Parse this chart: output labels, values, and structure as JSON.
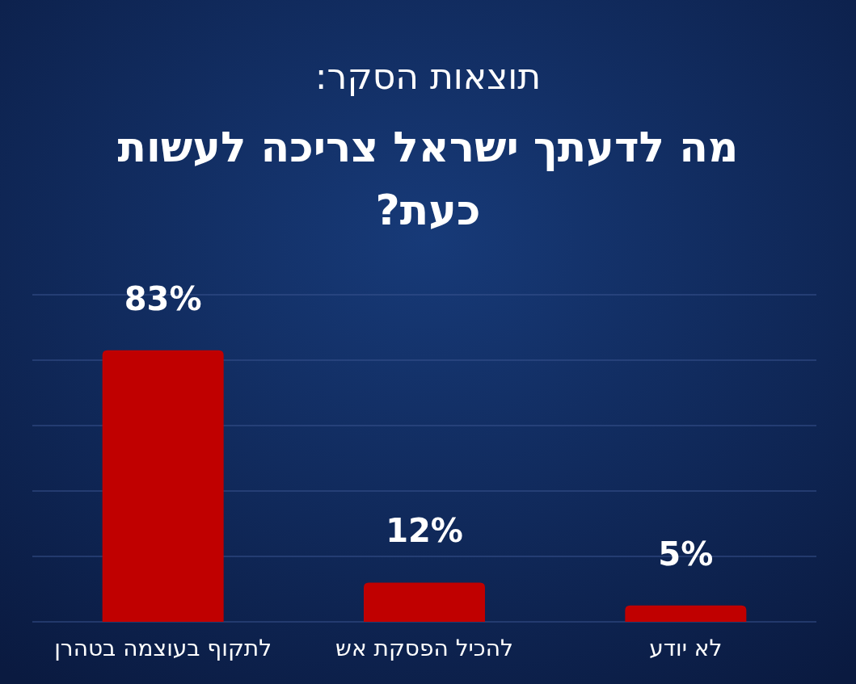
{
  "chart_data": {
    "type": "bar",
    "title": "תוצאות הסקר:",
    "subtitle": "מה לדעתך ישראל צריכה לעשות כעת?",
    "categories": [
      "לתקוף בעוצמה בטהרן",
      "להכיל הפסקת אש",
      "לא יודע"
    ],
    "values": [
      83,
      12,
      5
    ],
    "color": "#c00000",
    "value_labels": [
      "83%",
      "12%",
      "5%"
    ],
    "ylim": [
      0,
      100
    ],
    "yticks": [
      {
        "value": 0,
        "label": null
      },
      {
        "value": 20,
        "label": null
      },
      {
        "value": 40,
        "label": null
      },
      {
        "value": 60,
        "label": null
      },
      {
        "value": 80,
        "label": null
      },
      {
        "value": 100,
        "label": null
      }
    ],
    "grid": "y"
  }
}
